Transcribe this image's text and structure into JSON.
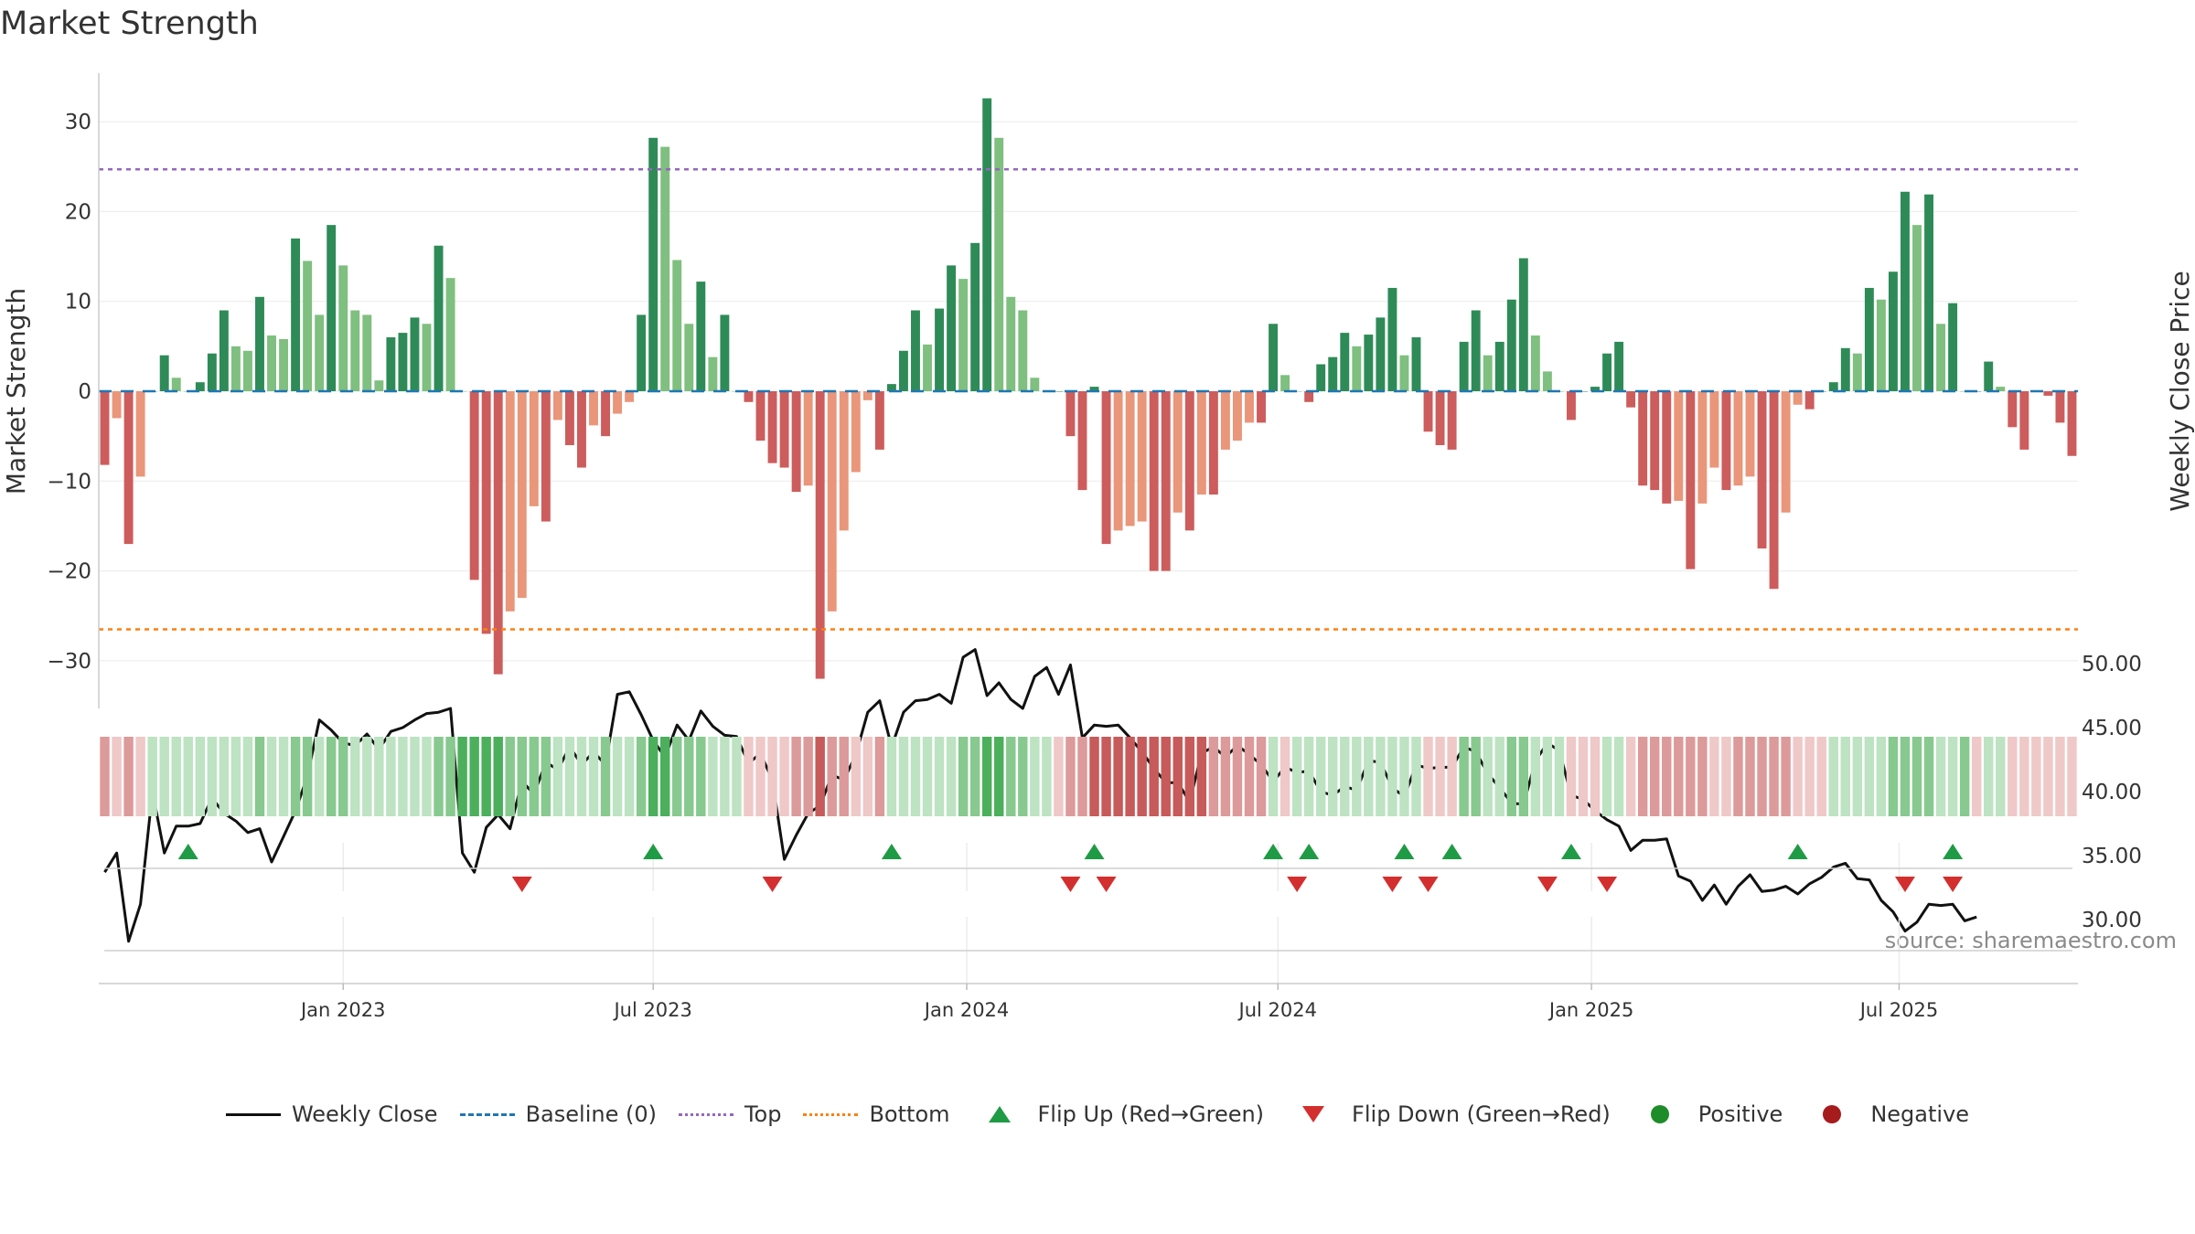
{
  "title": "Market Strength",
  "source": "source: sharemaestro.com",
  "colors": {
    "strong_green": "#2e8b57",
    "light_green": "#7fbf7f",
    "strong_red": "#cd5c5c",
    "light_red": "#e9967a",
    "close_line": "#111111",
    "baseline": "#1f77b4",
    "top": "#9467bd",
    "bottom": "#ff7f0e",
    "flip_up": "#1f9b45",
    "flip_down": "#d32f2f",
    "positive": "#1f8c2a",
    "negative": "#a61c1c"
  },
  "legend": [
    {
      "key": "close",
      "label": "Weekly Close"
    },
    {
      "key": "baseline",
      "label": "Baseline (0)"
    },
    {
      "key": "top",
      "label": "Top"
    },
    {
      "key": "bottom",
      "label": "Bottom"
    },
    {
      "key": "flip_up",
      "label": "Flip Up (Red→Green)"
    },
    {
      "key": "flip_down",
      "label": "Flip Down (Green→Red)"
    },
    {
      "key": "positive",
      "label": "Positive"
    },
    {
      "key": "negative",
      "label": "Negative"
    }
  ],
  "chart_data": {
    "type": "bar",
    "title": "Market Strength",
    "ylabel": "Market Strength",
    "y2label": "Weekly Close Price",
    "ylim": [
      -35,
      35
    ],
    "y2lim": [
      28.1,
      53.6
    ],
    "yticks": [
      30,
      20,
      10,
      0,
      -10,
      -20,
      -30
    ],
    "yticklabels": [
      "30",
      "20",
      "10",
      "0",
      "−10",
      "−20",
      "−30"
    ],
    "y2ticks": [
      50,
      45,
      40,
      35,
      30
    ],
    "y2ticklabels": [
      "50.00",
      "45.00",
      "40.00",
      "35.00",
      "30.00"
    ],
    "xticks": [
      {
        "label": "Jan 2023",
        "week": 20
      },
      {
        "label": "Jul 2023",
        "week": 46
      },
      {
        "label": "Jan 2024",
        "week": 72.3
      },
      {
        "label": "Jul 2024",
        "week": 98.4
      },
      {
        "label": "Jan 2025",
        "week": 124.7
      },
      {
        "label": "Jul 2025",
        "week": 150.5
      }
    ],
    "top_line": 24.7,
    "bottom_line": -26.5,
    "baseline": 0,
    "series": [
      {
        "name": "Market Strength",
        "values": [
          -8.2,
          -3,
          -17,
          -9.5,
          0,
          4,
          1.5,
          0,
          1,
          4.2,
          9,
          5,
          4.5,
          10.5,
          6.2,
          5.8,
          17,
          14.5,
          8.5,
          18.5,
          14,
          9,
          8.5,
          1.2,
          6,
          6.5,
          8.2,
          7.5,
          16.2,
          12.6,
          0,
          -21,
          -27,
          -31.5,
          -24.5,
          -23,
          -12.8,
          -14.5,
          -3.2,
          -6,
          -8.5,
          -3.8,
          -5,
          -2.5,
          -1.2,
          8.5,
          28.2,
          27.2,
          14.6,
          7.5,
          12.2,
          3.8,
          8.5,
          0,
          -1.2,
          -5.5,
          -8,
          -8.5,
          -11.2,
          -10.5,
          -32,
          -24.5,
          -15.5,
          -9,
          -1,
          -6.5,
          0.8,
          4.5,
          9,
          5.2,
          9.2,
          14,
          12.5,
          16.5,
          32.6,
          28.2,
          10.5,
          9,
          1.5,
          0,
          0,
          -5,
          -11,
          0.5,
          -17,
          -15.5,
          -15,
          -14.5,
          -20,
          -20,
          -13.5,
          -15.5,
          -11.5,
          -11.5,
          -6.5,
          -5.5,
          -3.5,
          -3.5,
          7.5,
          1.8,
          0,
          -1.2,
          3,
          3.8,
          6.5,
          5,
          6.3,
          8.2,
          11.5,
          4,
          6,
          -4.5,
          -6,
          -6.5,
          5.5,
          9,
          4,
          5.5,
          10.2,
          14.8,
          6.2,
          2.2,
          0,
          -3.2,
          0,
          0.5,
          4.2,
          5.5,
          -1.8,
          -10.5,
          -11,
          -12.5,
          -12.2,
          -19.8,
          -12.5,
          -8.5,
          -11,
          -10.5,
          -9.5,
          -17.5,
          -22,
          -13.5,
          -1.5,
          -2,
          0,
          1,
          4.8,
          4.2,
          11.5,
          10.2,
          13.3,
          22.2,
          18.5,
          21.9,
          7.5,
          9.8,
          0,
          0,
          3.3,
          0.5,
          -4,
          -6.5,
          0,
          -0.5,
          -3.5,
          -7.2
        ]
      },
      {
        "name": "Weekly Close",
        "values": [
          33.7,
          35.2,
          28.3,
          31.2,
          40,
          35.2,
          37.3,
          37.3,
          37.5,
          39.5,
          38.3,
          37.7,
          36.8,
          37.1,
          34.5,
          36.5,
          38.5,
          41.2,
          45.6,
          44.8,
          43.8,
          43.6,
          44.5,
          43.3,
          44.7,
          45,
          45.6,
          46.1,
          46.2,
          46.5,
          35.2,
          33.7,
          37.2,
          38.2,
          37.1,
          40.8,
          39.8,
          42.3,
          41.7,
          43.5,
          42.1,
          43.1,
          42.1,
          47.6,
          47.8,
          46,
          44,
          42.7,
          45.2,
          44,
          46.3,
          45.1,
          44.4,
          44.3,
          42.2,
          43,
          40.9,
          34.7,
          36.6,
          38.3,
          38.9,
          41.3,
          40.9,
          42.9,
          46.2,
          47.1,
          43.5,
          46.2,
          47.1,
          47.2,
          47.6,
          46.9,
          50.5,
          51.1,
          47.5,
          48.5,
          47.2,
          46.5,
          49,
          49.7,
          47.6,
          49.9,
          44.2,
          45.2,
          45.1,
          45.2,
          44.2,
          43.1,
          41.8,
          40.7,
          40.7,
          39.2,
          43,
          43.5,
          42.7,
          43.6,
          42.9,
          42.1,
          40.8,
          41.9,
          41.5,
          41.6,
          40,
          39.7,
          40.4,
          40.1,
          42.4,
          42.3,
          40.3,
          39.6,
          42.1,
          41.8,
          41.9,
          41.9,
          43.5,
          43.1,
          41.4,
          40.3,
          39.1,
          39,
          42.4,
          43.8,
          43.2,
          39.7,
          39.4,
          38.5,
          37.8,
          37.3,
          35.4,
          36.2,
          36.2,
          36.3,
          33.4,
          33,
          31.5,
          32.7,
          31.2,
          32.6,
          33.5,
          32.2,
          32.3,
          32.6,
          32,
          32.8,
          33.3,
          34.1,
          34.4,
          33.2,
          33.1,
          31.5,
          30.6,
          29.1,
          29.8,
          31.2,
          31.1,
          31.2,
          29.9,
          30.2
        ]
      }
    ],
    "strength_scale": [
      -2,
      -1,
      -2,
      -1,
      1,
      1,
      1,
      1,
      1,
      1,
      1,
      1,
      1,
      2,
      1,
      1,
      2,
      2,
      1,
      2,
      2,
      1,
      1,
      1,
      1,
      1,
      1,
      1,
      2,
      2,
      3,
      3,
      3,
      3,
      2,
      2,
      2,
      2,
      1,
      1,
      1,
      1,
      2,
      1,
      1,
      2,
      3,
      3,
      2,
      2,
      2,
      1,
      1,
      1,
      -1,
      -1,
      -1,
      -1,
      -2,
      -2,
      -3,
      -2,
      -2,
      -1,
      -1,
      -2,
      1,
      1,
      1,
      1,
      1,
      1,
      2,
      2,
      3,
      3,
      2,
      2,
      1,
      1,
      -1,
      -2,
      -2,
      -3,
      -3,
      -3,
      -3,
      -3,
      -3,
      -3,
      -3,
      -3,
      -3,
      -2,
      -2,
      -2,
      -2,
      -2,
      1,
      -1,
      1,
      1,
      1,
      1,
      1,
      1,
      1,
      1,
      1,
      1,
      1,
      -1,
      -1,
      -1,
      2,
      2,
      1,
      1,
      2,
      2,
      1,
      1,
      1,
      -1,
      -1,
      -1,
      1,
      1,
      -1,
      -2,
      -2,
      -2,
      -2,
      -2,
      -2,
      -1,
      -1,
      -2,
      -2,
      -2,
      -2,
      -2,
      -1,
      -1,
      -1,
      1,
      1,
      1,
      1,
      1,
      2,
      2,
      2,
      2,
      1,
      1,
      2,
      -1,
      1,
      1,
      -1,
      -1,
      -1,
      -1,
      -1,
      -1
    ],
    "flips_up": [
      7,
      46,
      66,
      83,
      98,
      101,
      109,
      113,
      123,
      142,
      155
    ],
    "flips_down": [
      35,
      56,
      81,
      84,
      100,
      108,
      111,
      121,
      126,
      151,
      155
    ]
  }
}
